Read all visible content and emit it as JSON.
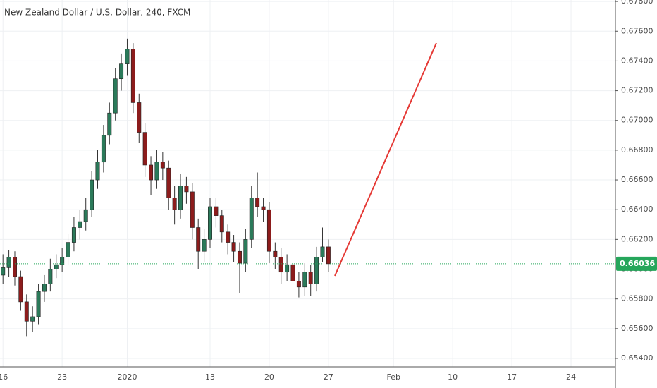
{
  "chart_data": {
    "type": "candlestick",
    "title": "New Zealand Dollar / U.S. Dollar, 240, FXCM",
    "categories": [
      "16",
      null,
      null,
      null,
      null,
      null,
      null,
      null,
      null,
      null,
      "23",
      null,
      null,
      null,
      null,
      null,
      null,
      null,
      null,
      null,
      null,
      "2020",
      null,
      null,
      null,
      null,
      null,
      null,
      null,
      null,
      null,
      null,
      null,
      null,
      null,
      "13",
      null,
      null,
      null,
      null,
      null,
      null,
      null,
      null,
      null,
      "20",
      null,
      null,
      null,
      null,
      null,
      null,
      null,
      null,
      null,
      "27",
      null,
      null,
      null,
      null,
      null,
      null,
      null,
      null,
      null,
      null,
      "Feb",
      null,
      null,
      null,
      null,
      null,
      null,
      null,
      null,
      null,
      "10",
      null,
      null,
      null,
      null,
      null,
      null,
      null,
      null,
      null,
      "17",
      null,
      null,
      null,
      null,
      null,
      null,
      null,
      null,
      null,
      "24",
      null,
      null,
      null,
      null,
      null,
      null,
      null
    ],
    "open": [
      0.6596,
      0.6601,
      0.6608,
      0.6595,
      0.6578,
      0.6565,
      0.6568,
      0.6585,
      0.659,
      0.66,
      0.6603,
      0.6608,
      0.6618,
      0.6628,
      0.6632,
      0.664,
      0.666,
      0.6672,
      0.669,
      0.6705,
      0.6728,
      0.6738,
      0.6748,
      0.6712,
      0.6692,
      0.667,
      0.666,
      0.6672,
      0.6668,
      0.6648,
      0.664,
      0.6656,
      0.6652,
      0.6628,
      0.6612,
      0.662,
      0.6642,
      0.6636,
      0.6625,
      0.6618,
      0.6612,
      0.6604,
      0.662,
      0.6648,
      0.6642,
      0.664,
      0.6612,
      0.6608,
      0.6598,
      0.6603,
      0.6592,
      0.6588,
      0.6598,
      0.659,
      0.6608,
      0.6615,
      null,
      null,
      null,
      null,
      null,
      null,
      null,
      null,
      null,
      null,
      null,
      null,
      null,
      null,
      null,
      null,
      null,
      null,
      null,
      null,
      null,
      null,
      null,
      null,
      null,
      null,
      null,
      null,
      null,
      null,
      null,
      null,
      null,
      null,
      null,
      null,
      null,
      null,
      null,
      null,
      null,
      null,
      null,
      null,
      null,
      null,
      null,
      null
    ],
    "high": [
      0.661,
      0.6613,
      0.6612,
      0.6599,
      0.6583,
      0.6575,
      0.659,
      0.6596,
      0.6607,
      0.661,
      0.6614,
      0.6624,
      0.6635,
      0.664,
      0.6648,
      0.6666,
      0.668,
      0.6697,
      0.6712,
      0.6735,
      0.6745,
      0.6755,
      0.6752,
      0.6718,
      0.6698,
      0.6676,
      0.668,
      0.6679,
      0.6673,
      0.6656,
      0.6664,
      0.6662,
      0.6658,
      0.6634,
      0.6627,
      0.6648,
      0.6648,
      0.664,
      0.663,
      0.6623,
      0.6618,
      0.6627,
      0.6656,
      0.6665,
      0.6648,
      0.6645,
      0.6618,
      0.6614,
      0.661,
      0.6608,
      0.6598,
      0.6604,
      0.6603,
      0.6615,
      0.6628,
      0.662,
      null,
      null,
      null,
      null,
      null,
      null,
      null,
      null,
      null,
      null,
      null,
      null,
      null,
      null,
      null,
      null,
      null,
      null,
      null,
      null,
      null,
      null,
      null,
      null,
      null,
      null,
      null,
      null,
      null,
      null,
      null,
      null,
      null,
      null,
      null,
      null,
      null,
      null,
      null,
      null,
      null,
      null,
      null,
      null,
      null,
      null,
      null,
      null
    ],
    "low": [
      0.659,
      0.6595,
      0.6589,
      0.6572,
      0.6555,
      0.6558,
      0.6563,
      0.6578,
      0.6585,
      0.6594,
      0.6598,
      0.6603,
      0.6612,
      0.662,
      0.6626,
      0.6635,
      0.6654,
      0.6665,
      0.6684,
      0.67,
      0.672,
      0.673,
      0.6705,
      0.6685,
      0.6662,
      0.665,
      0.6654,
      0.666,
      0.664,
      0.663,
      0.6634,
      0.6644,
      0.662,
      0.66,
      0.6605,
      0.6614,
      0.6628,
      0.6618,
      0.661,
      0.6605,
      0.6584,
      0.6598,
      0.6614,
      0.6635,
      0.6632,
      0.6604,
      0.66,
      0.659,
      0.6592,
      0.6583,
      0.6581,
      0.6582,
      0.6582,
      0.6585,
      0.6605,
      0.6598,
      null,
      null,
      null,
      null,
      null,
      null,
      null,
      null,
      null,
      null,
      null,
      null,
      null,
      null,
      null,
      null,
      null,
      null,
      null,
      null,
      null,
      null,
      null,
      null,
      null,
      null,
      null,
      null,
      null,
      null,
      null,
      null,
      null,
      null,
      null,
      null,
      null,
      null,
      null,
      null,
      null,
      null,
      null,
      null,
      null,
      null,
      null,
      null
    ],
    "close": [
      0.6601,
      0.6608,
      0.6595,
      0.6578,
      0.6565,
      0.6568,
      0.6585,
      0.659,
      0.66,
      0.6603,
      0.6608,
      0.6618,
      0.6628,
      0.6632,
      0.664,
      0.666,
      0.6672,
      0.669,
      0.6705,
      0.6728,
      0.6738,
      0.6748,
      0.6712,
      0.6692,
      0.667,
      0.666,
      0.6672,
      0.6668,
      0.6648,
      0.664,
      0.6656,
      0.6652,
      0.6628,
      0.6612,
      0.662,
      0.6642,
      0.6636,
      0.6625,
      0.6618,
      0.6612,
      0.6604,
      0.662,
      0.6648,
      0.6642,
      0.664,
      0.6612,
      0.6608,
      0.6598,
      0.6603,
      0.6592,
      0.6588,
      0.6598,
      0.659,
      0.6608,
      0.6615,
      0.66036,
      null,
      null,
      null,
      null,
      null,
      null,
      null,
      null,
      null,
      null,
      null,
      null,
      null,
      null,
      null,
      null,
      null,
      null,
      null,
      null,
      null,
      null,
      null,
      null,
      null,
      null,
      null,
      null,
      null,
      null,
      null,
      null,
      null,
      null,
      null,
      null,
      null,
      null,
      null,
      null,
      null,
      null,
      null,
      null,
      null,
      null,
      null,
      null
    ],
    "up_color": "#2b7a5a",
    "down_color": "#8c1c1c",
    "wick_color": "#333333",
    "ylim": [
      0.65343,
      0.6781
    ],
    "yticks": [
      {
        "value": 0.654,
        "label": "0.65400"
      },
      {
        "value": 0.656,
        "label": "0.65600"
      },
      {
        "value": 0.658,
        "label": "0.65800"
      },
      {
        "value": 0.66,
        "label": "0.66000"
      },
      {
        "value": 0.662,
        "label": "0.66200"
      },
      {
        "value": 0.664,
        "label": "0.66400"
      },
      {
        "value": 0.666,
        "label": "0.66600"
      },
      {
        "value": 0.668,
        "label": "0.66800"
      },
      {
        "value": 0.67,
        "label": "0.67000"
      },
      {
        "value": 0.672,
        "label": "0.67200"
      },
      {
        "value": 0.674,
        "label": "0.67400"
      },
      {
        "value": 0.676,
        "label": "0.67600"
      },
      {
        "value": 0.678,
        "label": "0.67800"
      }
    ],
    "last_price": {
      "value": 0.66036,
      "label": "0.66036",
      "color": "#26a65b"
    },
    "grid": true
  }
}
